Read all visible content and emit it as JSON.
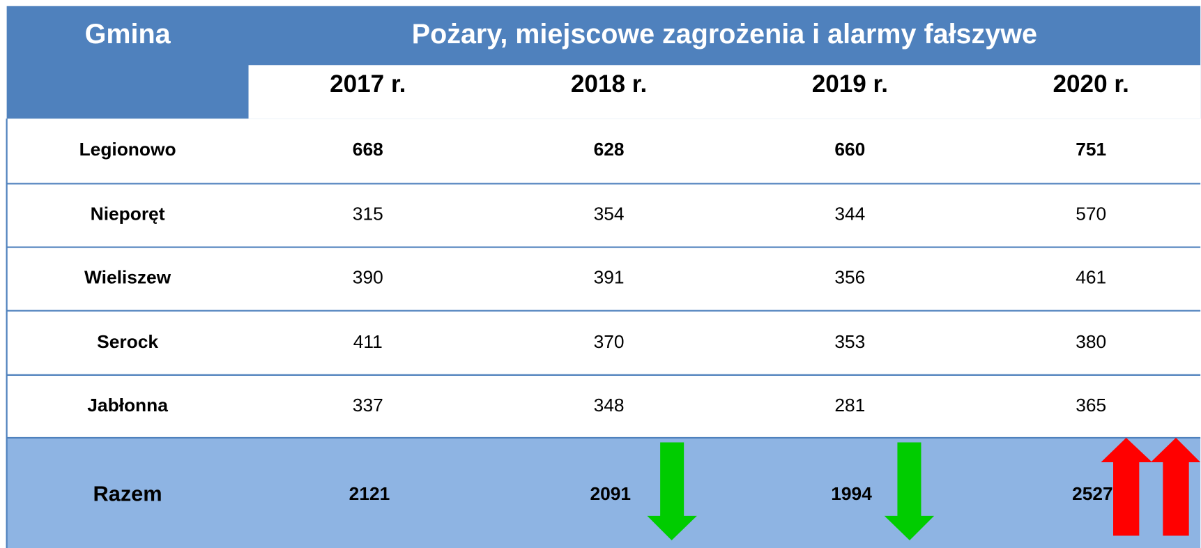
{
  "header": {
    "first_column": "Gmina",
    "title": "Pożary, miejscowe zagrożenia i alarmy fałszywe",
    "years": [
      "2017 r.",
      "2018 r.",
      "2019 r.",
      "2020 r."
    ]
  },
  "table": {
    "rows": [
      {
        "name": "Legionowo",
        "values": [
          668,
          628,
          660,
          751
        ]
      },
      {
        "name": "Nieporęt",
        "values": [
          315,
          354,
          344,
          570
        ]
      },
      {
        "name": "Wieliszew",
        "values": [
          390,
          391,
          356,
          461
        ]
      },
      {
        "name": "Serock",
        "values": [
          411,
          370,
          353,
          380
        ]
      },
      {
        "name": "Jabłonna",
        "values": [
          337,
          348,
          281,
          365
        ]
      }
    ],
    "total": {
      "name": "Razem",
      "values": [
        2121,
        2091,
        1994,
        2527
      ]
    }
  }
}
